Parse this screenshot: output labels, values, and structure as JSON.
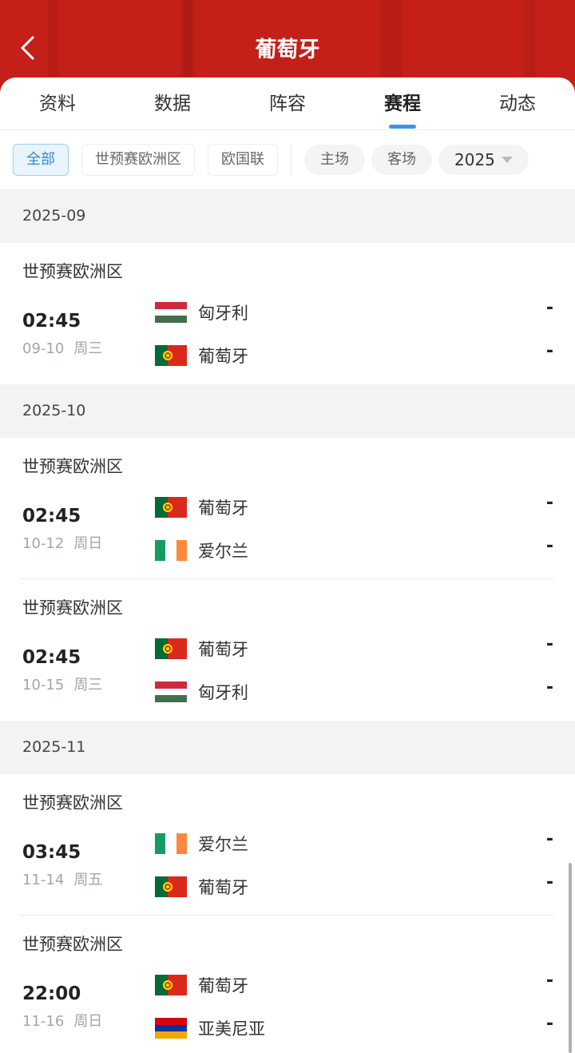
{
  "header": {
    "title": "葡萄牙",
    "back_icon": "chevron-left-icon"
  },
  "tabs": [
    {
      "label": "资料"
    },
    {
      "label": "数据"
    },
    {
      "label": "阵容"
    },
    {
      "label": "赛程",
      "active": true
    },
    {
      "label": "动态"
    }
  ],
  "filters": {
    "competitions": [
      {
        "label": "全部",
        "active": true
      },
      {
        "label": "世预赛欧洲区"
      },
      {
        "label": "欧国联"
      }
    ],
    "venues": [
      {
        "label": "主场"
      },
      {
        "label": "客场"
      }
    ],
    "year": "2025"
  },
  "colors": {
    "brand_red": "#c41f18",
    "accent_blue": "#3b95ee"
  },
  "months": [
    {
      "label": "2025-09",
      "matches": [
        {
          "league": "世预赛欧洲区",
          "time": "02:45",
          "date": "09-10",
          "weekday": "周三",
          "home": {
            "name": "匈牙利",
            "flag": "hungary"
          },
          "away": {
            "name": "葡萄牙",
            "flag": "portugal"
          },
          "home_score": "-",
          "away_score": "-"
        }
      ]
    },
    {
      "label": "2025-10",
      "matches": [
        {
          "league": "世预赛欧洲区",
          "time": "02:45",
          "date": "10-12",
          "weekday": "周日",
          "home": {
            "name": "葡萄牙",
            "flag": "portugal"
          },
          "away": {
            "name": "爱尔兰",
            "flag": "ireland"
          },
          "home_score": "-",
          "away_score": "-"
        },
        {
          "league": "世预赛欧洲区",
          "time": "02:45",
          "date": "10-15",
          "weekday": "周三",
          "home": {
            "name": "葡萄牙",
            "flag": "portugal"
          },
          "away": {
            "name": "匈牙利",
            "flag": "hungary"
          },
          "home_score": "-",
          "away_score": "-"
        }
      ]
    },
    {
      "label": "2025-11",
      "matches": [
        {
          "league": "世预赛欧洲区",
          "time": "03:45",
          "date": "11-14",
          "weekday": "周五",
          "home": {
            "name": "爱尔兰",
            "flag": "ireland"
          },
          "away": {
            "name": "葡萄牙",
            "flag": "portugal"
          },
          "home_score": "-",
          "away_score": "-"
        },
        {
          "league": "世预赛欧洲区",
          "time": "22:00",
          "date": "11-16",
          "weekday": "周日",
          "home": {
            "name": "葡萄牙",
            "flag": "portugal"
          },
          "away": {
            "name": "亚美尼亚",
            "flag": "armenia"
          },
          "home_score": "-",
          "away_score": "-"
        }
      ]
    }
  ]
}
